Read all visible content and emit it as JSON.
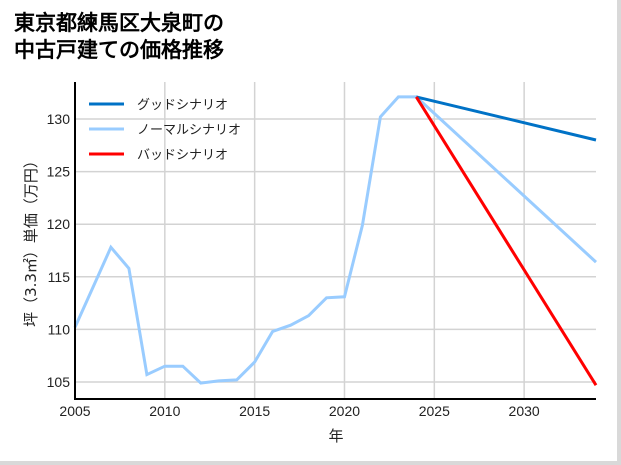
{
  "title": {
    "line1": "東京都練馬区大泉町の",
    "line2": "中古戸建ての価格推移"
  },
  "chart_data": {
    "type": "line",
    "title": "東京都練馬区大泉町の中古戸建ての価格推移",
    "xlabel": "年",
    "ylabel": "坪（3.3㎡）単価（万円）",
    "xlim": [
      2005,
      2034
    ],
    "ylim": [
      103.3,
      133.5
    ],
    "xticks": [
      2005,
      2010,
      2015,
      2020,
      2025,
      2030
    ],
    "yticks": [
      105,
      110,
      115,
      120,
      125,
      130
    ],
    "grid": true,
    "legend_position": "upper left",
    "series": [
      {
        "name": "グッドシナリオ",
        "color": "#0072c6",
        "x": [
          2024,
          2034
        ],
        "values": [
          132.1,
          128.0
        ]
      },
      {
        "name": "ノーマルシナリオ",
        "color": "#99ccff",
        "x": [
          2005,
          2006,
          2007,
          2008,
          2009,
          2010,
          2011,
          2012,
          2013,
          2014,
          2015,
          2016,
          2017,
          2018,
          2019,
          2020,
          2021,
          2022,
          2023,
          2024,
          2034
        ],
        "values": [
          110.2,
          114.0,
          117.8,
          115.8,
          105.7,
          106.5,
          106.5,
          104.9,
          105.1,
          105.2,
          106.9,
          109.8,
          110.4,
          111.3,
          113.0,
          113.1,
          119.9,
          130.2,
          132.1,
          132.1,
          116.4
        ]
      },
      {
        "name": "バッドシナリオ",
        "color": "#ff0000",
        "x": [
          2024,
          2034
        ],
        "values": [
          132.1,
          104.7
        ]
      }
    ]
  }
}
